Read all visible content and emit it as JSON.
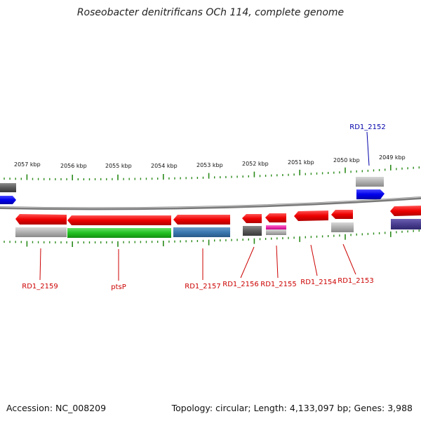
{
  "title": "Roseobacter denitrificans OCh 114, complete genome",
  "footer": {
    "accession": "Accession: NC_008209",
    "summary": "Topology: circular; Length: 4,133,097 bp; Genes: 3,988"
  },
  "colors": {
    "backbone": "#8a8a8a",
    "tick": "#2a8a1a",
    "gene_label": "#cc0000",
    "highlight_label": "#0000aa"
  },
  "kbp_labels": [
    "2057 kbp",
    "2056 kbp",
    "2055 kbp",
    "2054 kbp",
    "2053 kbp",
    "2052 kbp",
    "2051 kbp",
    "2050 kbp",
    "2049 kbp"
  ],
  "gene_labels": [
    {
      "id": "rd1_2159",
      "text": "RD1_2159"
    },
    {
      "id": "ptsp",
      "text": "ptsP"
    },
    {
      "id": "rd1_2157",
      "text": "RD1_2157"
    },
    {
      "id": "rd1_2156",
      "text": "RD1_2156"
    },
    {
      "id": "rd1_2155",
      "text": "RD1_2155"
    },
    {
      "id": "rd1_2154",
      "text": "RD1_2154"
    },
    {
      "id": "rd1_2153",
      "text": "RD1_2153"
    },
    {
      "id": "rd1_2152",
      "text": "RD1_2152"
    }
  ]
}
